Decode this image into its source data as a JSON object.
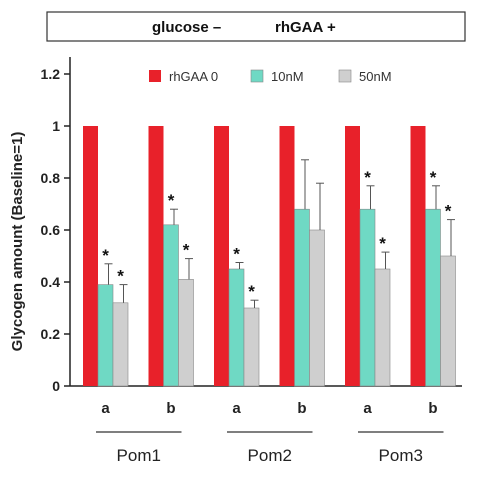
{
  "header": {
    "left": "glucose –",
    "right": "rhGAA +"
  },
  "chart_data": {
    "type": "bar",
    "title": "",
    "xlabel": "",
    "ylabel": "Glycogen amount (Baseline=1)",
    "ylim": [
      0,
      1.25
    ],
    "yticks": [
      0,
      0.2,
      0.4,
      0.6,
      0.8,
      1,
      1.2
    ],
    "ytick_labels": [
      "0",
      "0.2",
      "0.4",
      "0.6",
      "0.8",
      "1",
      "1.2"
    ],
    "legend_position": "top",
    "categories": [
      "a",
      "b",
      "a",
      "b",
      "a",
      "b"
    ],
    "groups": [
      {
        "label": "Pom1",
        "categories": [
          "a",
          "b"
        ]
      },
      {
        "label": "Pom2",
        "categories": [
          "a",
          "b"
        ]
      },
      {
        "label": "Pom3",
        "categories": [
          "a",
          "b"
        ]
      }
    ],
    "series": [
      {
        "name": "rhGAA 0",
        "color": "#e8212a",
        "values": [
          1,
          1,
          1,
          1,
          1,
          1
        ],
        "errors": [
          0,
          0,
          0,
          0,
          0,
          0
        ],
        "significant": [
          false,
          false,
          false,
          false,
          false,
          false
        ]
      },
      {
        "name": "10nM",
        "color": "#6fd9c4",
        "values": [
          0.39,
          0.62,
          0.45,
          0.68,
          0.68,
          0.68
        ],
        "errors": [
          0.08,
          0.06,
          0.025,
          0.19,
          0.09,
          0.09
        ],
        "significant": [
          true,
          true,
          true,
          false,
          true,
          true
        ]
      },
      {
        "name": "50nM",
        "color": "#cfcfcf",
        "values": [
          0.32,
          0.41,
          0.3,
          0.6,
          0.45,
          0.5
        ],
        "errors": [
          0.07,
          0.08,
          0.03,
          0.18,
          0.065,
          0.14
        ],
        "significant": [
          true,
          true,
          true,
          false,
          true,
          true
        ]
      }
    ],
    "significance_marker": "*"
  }
}
